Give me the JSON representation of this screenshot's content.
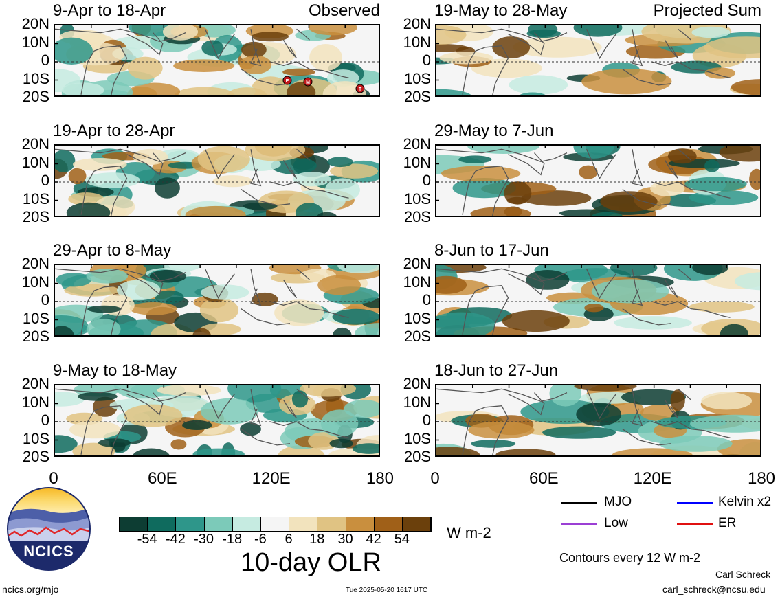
{
  "panels": [
    {
      "title": "9-Apr to 18-Apr",
      "tag": "Observed",
      "kind": "obs",
      "markers": [
        "E",
        "M",
        "T"
      ]
    },
    {
      "title": "19-May to 28-May",
      "tag": "Projected Sum",
      "kind": "proj",
      "markers": []
    },
    {
      "title": "19-Apr to 28-Apr",
      "tag": "",
      "kind": "obs",
      "markers": []
    },
    {
      "title": "29-May to 7-Jun",
      "tag": "",
      "kind": "proj",
      "markers": []
    },
    {
      "title": "29-Apr to 8-May",
      "tag": "",
      "kind": "obs",
      "markers": []
    },
    {
      "title": "8-Jun to 17-Jun",
      "tag": "",
      "kind": "proj",
      "markers": []
    },
    {
      "title": "9-May to 18-May",
      "tag": "",
      "kind": "obs",
      "markers": []
    },
    {
      "title": "18-Jun to 27-Jun",
      "tag": "",
      "kind": "proj",
      "markers": []
    }
  ],
  "lat_labels": [
    "20N",
    "10N",
    "0",
    "10S",
    "20S"
  ],
  "lon_labels": [
    "0",
    "60E",
    "120E",
    "180"
  ],
  "colorbar": {
    "labels": [
      "-54",
      "-42",
      "-30",
      "-18",
      "-6",
      "6",
      "18",
      "30",
      "42",
      "54"
    ],
    "colors": [
      "#0d3d33",
      "#0f6b5e",
      "#2e968a",
      "#7ccab9",
      "#c6ebe1",
      "#f5f5f5",
      "#f2e3bd",
      "#e0c383",
      "#c98f3e",
      "#a06018",
      "#6b400c"
    ],
    "units": "W m-2"
  },
  "chart_data": {
    "type": "heatmap",
    "title": "10-day OLR",
    "units": "W m-2",
    "xlim": [
      0,
      180
    ],
    "ylim": [
      -20,
      20
    ],
    "levels": [
      -54,
      -42,
      -30,
      -18,
      -6,
      6,
      18,
      30,
      42,
      54
    ],
    "contour_interval": 12
  },
  "legend": {
    "items": [
      {
        "label": "MJO",
        "color": "#000000"
      },
      {
        "label": "Kelvin x2",
        "color": "#0000ff"
      },
      {
        "label": "Low",
        "color": "#9b3fd4"
      },
      {
        "label": "ER",
        "color": "#e01010"
      }
    ],
    "contours_note": "Contours every 12 W m-2"
  },
  "logo": {
    "text": "NCICS"
  },
  "footer": {
    "url": "ncics.org/mjo",
    "timestamp": "Tue 2025-05-20 1617 UTC",
    "author": "Carl Schreck",
    "email": "carl_schreck@ncsu.edu"
  }
}
